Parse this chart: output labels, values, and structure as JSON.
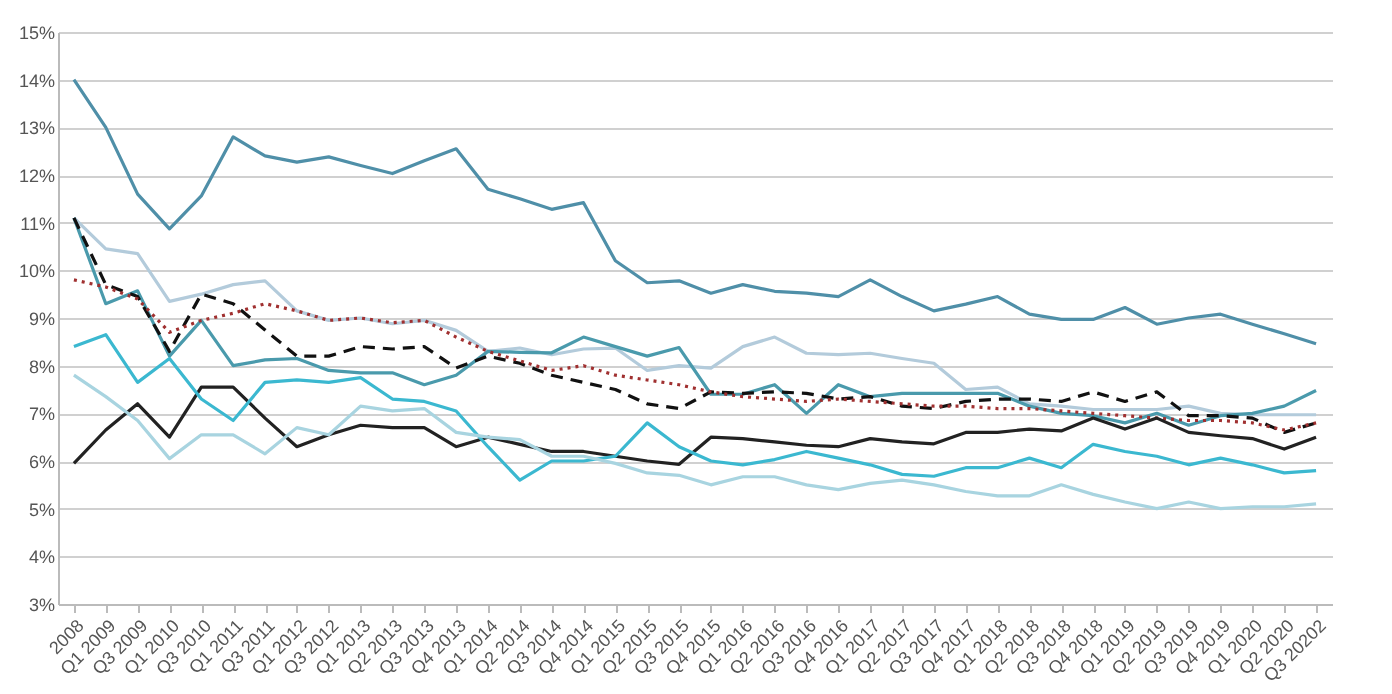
{
  "chart_data": {
    "type": "line",
    "categories": [
      "2008",
      "Q1 2009",
      "Q3 2009",
      "Q1 2010",
      "Q3 2010",
      "Q1 2011",
      "Q3 2011",
      "Q1 2012",
      "Q3 2012",
      "Q1 2013",
      "Q2 2013",
      "Q3 2013",
      "Q4 2013",
      "Q1 2014",
      "Q2 2014",
      "Q3 2014",
      "Q4 2014",
      "Q1 2015",
      "Q2 2015",
      "Q3 2015",
      "Q4 2015",
      "Q1 2016",
      "Q2 2016",
      "Q3 2016",
      "Q4 2016",
      "Q1 2017",
      "Q2 2017",
      "Q3 2017",
      "Q4 2017",
      "Q1 2018",
      "Q2 2018",
      "Q3 2018",
      "Q4 2018",
      "Q1 2019",
      "Q2 2019",
      "Q3 2019",
      "Q4 2019",
      "Q1 2020",
      "Q2 2020",
      "Q3 20202"
    ],
    "series": [
      {
        "color": "#4f8fa8",
        "line_style": "solid",
        "values": [
          14,
          13,
          11.6,
          10.87,
          11.56,
          12.8,
          12.4,
          12.27,
          12.38,
          12.2,
          12.03,
          12.3,
          12.55,
          11.7,
          11.5,
          11.28,
          11.42,
          10.2,
          9.74,
          9.78,
          9.52,
          9.7,
          9.56,
          9.52,
          9.45,
          9.8,
          9.45,
          9.15,
          9.29,
          9.45,
          9.08,
          8.97,
          8.97,
          9.22,
          8.87,
          9.0,
          9.08,
          8.87,
          8.67,
          8.46
        ]
      },
      {
        "color": "#b3cbdb",
        "line_style": "solid",
        "values": [
          11.1,
          10.45,
          10.35,
          9.35,
          9.5,
          9.7,
          9.78,
          9.15,
          8.95,
          9.0,
          8.88,
          8.95,
          8.74,
          8.3,
          8.37,
          8.23,
          8.35,
          8.37,
          7.9,
          8.0,
          7.95,
          8.4,
          8.6,
          8.26,
          8.23,
          8.26,
          8.15,
          8.05,
          7.5,
          7.55,
          7.2,
          7.15,
          7.08,
          7.08,
          7.08,
          7.15,
          7.0,
          6.97,
          6.97,
          6.97
        ]
      },
      {
        "color": "#4a9aac",
        "line_style": "solid",
        "values": [
          11.1,
          9.3,
          9.57,
          8.2,
          8.95,
          8.0,
          8.12,
          8.15,
          7.9,
          7.85,
          7.85,
          7.6,
          7.8,
          8.3,
          8.28,
          8.27,
          8.6,
          8.4,
          8.2,
          8.38,
          7.4,
          7.4,
          7.6,
          7.0,
          7.6,
          7.35,
          7.42,
          7.42,
          7.42,
          7.42,
          7.15,
          7.0,
          6.95,
          6.8,
          7.0,
          6.75,
          6.95,
          7.0,
          7.15,
          7.48
        ]
      },
      {
        "color": "#111111",
        "line_style": "dashed",
        "values": [
          11.1,
          9.7,
          9.45,
          8.3,
          9.5,
          9.3,
          8.75,
          8.2,
          8.2,
          8.4,
          8.35,
          8.4,
          7.95,
          8.2,
          8.05,
          7.8,
          7.65,
          7.5,
          7.2,
          7.1,
          7.45,
          7.42,
          7.45,
          7.42,
          7.3,
          7.35,
          7.15,
          7.1,
          7.25,
          7.3,
          7.3,
          7.25,
          7.45,
          7.25,
          7.45,
          6.95,
          6.95,
          6.9,
          6.6,
          6.8
        ]
      },
      {
        "color": "#a03030",
        "line_style": "dotted",
        "values": [
          9.8,
          9.65,
          9.4,
          8.7,
          8.95,
          9.1,
          9.3,
          9.15,
          8.95,
          9.0,
          8.9,
          8.95,
          8.6,
          8.3,
          8.1,
          7.9,
          8.0,
          7.8,
          7.7,
          7.6,
          7.45,
          7.35,
          7.3,
          7.25,
          7.3,
          7.25,
          7.2,
          7.15,
          7.15,
          7.1,
          7.1,
          7.05,
          7.0,
          6.95,
          6.9,
          6.85,
          6.85,
          6.8,
          6.65,
          6.8
        ]
      },
      {
        "color": "#222222",
        "line_style": "solid",
        "values": [
          5.95,
          6.65,
          7.2,
          6.5,
          7.55,
          7.55,
          6.9,
          6.3,
          6.55,
          6.75,
          6.7,
          6.7,
          6.3,
          6.5,
          6.35,
          6.2,
          6.2,
          6.1,
          6.0,
          5.93,
          6.5,
          6.47,
          6.4,
          6.33,
          6.3,
          6.47,
          6.4,
          6.36,
          6.6,
          6.6,
          6.67,
          6.63,
          6.9,
          6.67,
          6.9,
          6.6,
          6.53,
          6.47,
          6.25,
          6.5
        ]
      },
      {
        "color": "#3bb8d0",
        "line_style": "solid",
        "values": [
          8.4,
          8.65,
          7.65,
          8.15,
          7.3,
          6.85,
          7.65,
          7.7,
          7.65,
          7.75,
          7.3,
          7.25,
          7.05,
          6.3,
          5.6,
          6.0,
          6.0,
          6.1,
          6.8,
          6.3,
          6.0,
          5.92,
          6.03,
          6.2,
          6.06,
          5.92,
          5.72,
          5.68,
          5.86,
          5.86,
          6.06,
          5.86,
          6.35,
          6.2,
          6.1,
          5.92,
          6.06,
          5.92,
          5.75,
          5.8
        ]
      },
      {
        "color": "#a8d4e0",
        "line_style": "solid",
        "values": [
          7.8,
          7.35,
          6.85,
          6.05,
          6.55,
          6.55,
          6.15,
          6.7,
          6.55,
          7.15,
          7.05,
          7.1,
          6.6,
          6.5,
          6.45,
          6.1,
          6.1,
          5.95,
          5.75,
          5.7,
          5.5,
          5.67,
          5.67,
          5.5,
          5.4,
          5.53,
          5.6,
          5.5,
          5.36,
          5.27,
          5.27,
          5.5,
          5.3,
          5.14,
          5.0,
          5.14,
          5.0,
          5.04,
          5.04,
          5.1
        ]
      }
    ],
    "ylim": [
      3,
      15
    ],
    "yticks": [
      {
        "value": 3,
        "label": "3%"
      },
      {
        "value": 4,
        "label": "4%"
      },
      {
        "value": 5,
        "label": "5%"
      },
      {
        "value": 6,
        "label": "6%"
      },
      {
        "value": 7,
        "label": "7%"
      },
      {
        "value": 8,
        "label": "8%"
      },
      {
        "value": 9,
        "label": "9%"
      },
      {
        "value": 10,
        "label": "10%"
      },
      {
        "value": 11,
        "label": "11%"
      },
      {
        "value": 12,
        "label": "12%"
      },
      {
        "value": 13,
        "label": "13%"
      },
      {
        "value": 14,
        "label": "14%"
      },
      {
        "value": 15,
        "label": "15%"
      }
    ],
    "grid": "y",
    "legend": false,
    "marker": "none"
  }
}
